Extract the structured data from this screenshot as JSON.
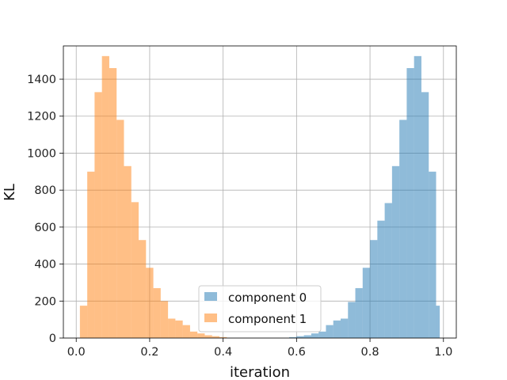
{
  "chart_data": {
    "type": "histogram",
    "title": "",
    "xlabel": "iteration",
    "ylabel": "KL",
    "xlim": [
      -0.035,
      1.035
    ],
    "ylim": [
      0,
      1580
    ],
    "xticks": [
      0.0,
      0.2,
      0.4,
      0.6,
      0.8,
      1.0
    ],
    "xtick_labels": [
      "0.0",
      "0.2",
      "0.4",
      "0.6",
      "0.8",
      "1.0"
    ],
    "yticks": [
      0,
      200,
      400,
      600,
      800,
      1000,
      1200,
      1400
    ],
    "ytick_labels": [
      "0",
      "200",
      "400",
      "600",
      "800",
      "1000",
      "1200",
      "1400"
    ],
    "grid": true,
    "legend_position": "lower-center",
    "series": [
      {
        "name": "component 0",
        "color": "#1f77b4",
        "alpha": 0.5,
        "bins": [
          {
            "x0": 0.58,
            "x1": 0.6,
            "count": 5
          },
          {
            "x0": 0.6,
            "x1": 0.62,
            "count": 10
          },
          {
            "x0": 0.62,
            "x1": 0.64,
            "count": 15
          },
          {
            "x0": 0.64,
            "x1": 0.66,
            "count": 25
          },
          {
            "x0": 0.66,
            "x1": 0.68,
            "count": 35
          },
          {
            "x0": 0.68,
            "x1": 0.7,
            "count": 70
          },
          {
            "x0": 0.7,
            "x1": 0.72,
            "count": 95
          },
          {
            "x0": 0.72,
            "x1": 0.74,
            "count": 105
          },
          {
            "x0": 0.74,
            "x1": 0.76,
            "count": 195
          },
          {
            "x0": 0.76,
            "x1": 0.78,
            "count": 270
          },
          {
            "x0": 0.78,
            "x1": 0.8,
            "count": 380
          },
          {
            "x0": 0.8,
            "x1": 0.82,
            "count": 530
          },
          {
            "x0": 0.82,
            "x1": 0.84,
            "count": 635
          },
          {
            "x0": 0.84,
            "x1": 0.86,
            "count": 730
          },
          {
            "x0": 0.86,
            "x1": 0.88,
            "count": 930
          },
          {
            "x0": 0.88,
            "x1": 0.9,
            "count": 1180
          },
          {
            "x0": 0.9,
            "x1": 0.92,
            "count": 1460
          },
          {
            "x0": 0.92,
            "x1": 0.94,
            "count": 1525
          },
          {
            "x0": 0.94,
            "x1": 0.96,
            "count": 1330
          },
          {
            "x0": 0.96,
            "x1": 0.98,
            "count": 900
          },
          {
            "x0": 0.98,
            "x1": 0.99,
            "count": 175
          }
        ]
      },
      {
        "name": "component 1",
        "color": "#ff7f0e",
        "alpha": 0.5,
        "bins": [
          {
            "x0": 0.01,
            "x1": 0.03,
            "count": 175
          },
          {
            "x0": 0.03,
            "x1": 0.05,
            "count": 900
          },
          {
            "x0": 0.05,
            "x1": 0.07,
            "count": 1330
          },
          {
            "x0": 0.07,
            "x1": 0.09,
            "count": 1525
          },
          {
            "x0": 0.09,
            "x1": 0.11,
            "count": 1460
          },
          {
            "x0": 0.11,
            "x1": 0.13,
            "count": 1180
          },
          {
            "x0": 0.13,
            "x1": 0.15,
            "count": 930
          },
          {
            "x0": 0.15,
            "x1": 0.17,
            "count": 735
          },
          {
            "x0": 0.17,
            "x1": 0.19,
            "count": 530
          },
          {
            "x0": 0.19,
            "x1": 0.21,
            "count": 380
          },
          {
            "x0": 0.21,
            "x1": 0.23,
            "count": 270
          },
          {
            "x0": 0.23,
            "x1": 0.25,
            "count": 200
          },
          {
            "x0": 0.25,
            "x1": 0.27,
            "count": 105
          },
          {
            "x0": 0.27,
            "x1": 0.29,
            "count": 95
          },
          {
            "x0": 0.29,
            "x1": 0.31,
            "count": 70
          },
          {
            "x0": 0.31,
            "x1": 0.33,
            "count": 35
          },
          {
            "x0": 0.33,
            "x1": 0.35,
            "count": 25
          },
          {
            "x0": 0.35,
            "x1": 0.37,
            "count": 15
          },
          {
            "x0": 0.37,
            "x1": 0.39,
            "count": 10
          },
          {
            "x0": 0.39,
            "x1": 0.41,
            "count": 5
          }
        ]
      }
    ]
  }
}
